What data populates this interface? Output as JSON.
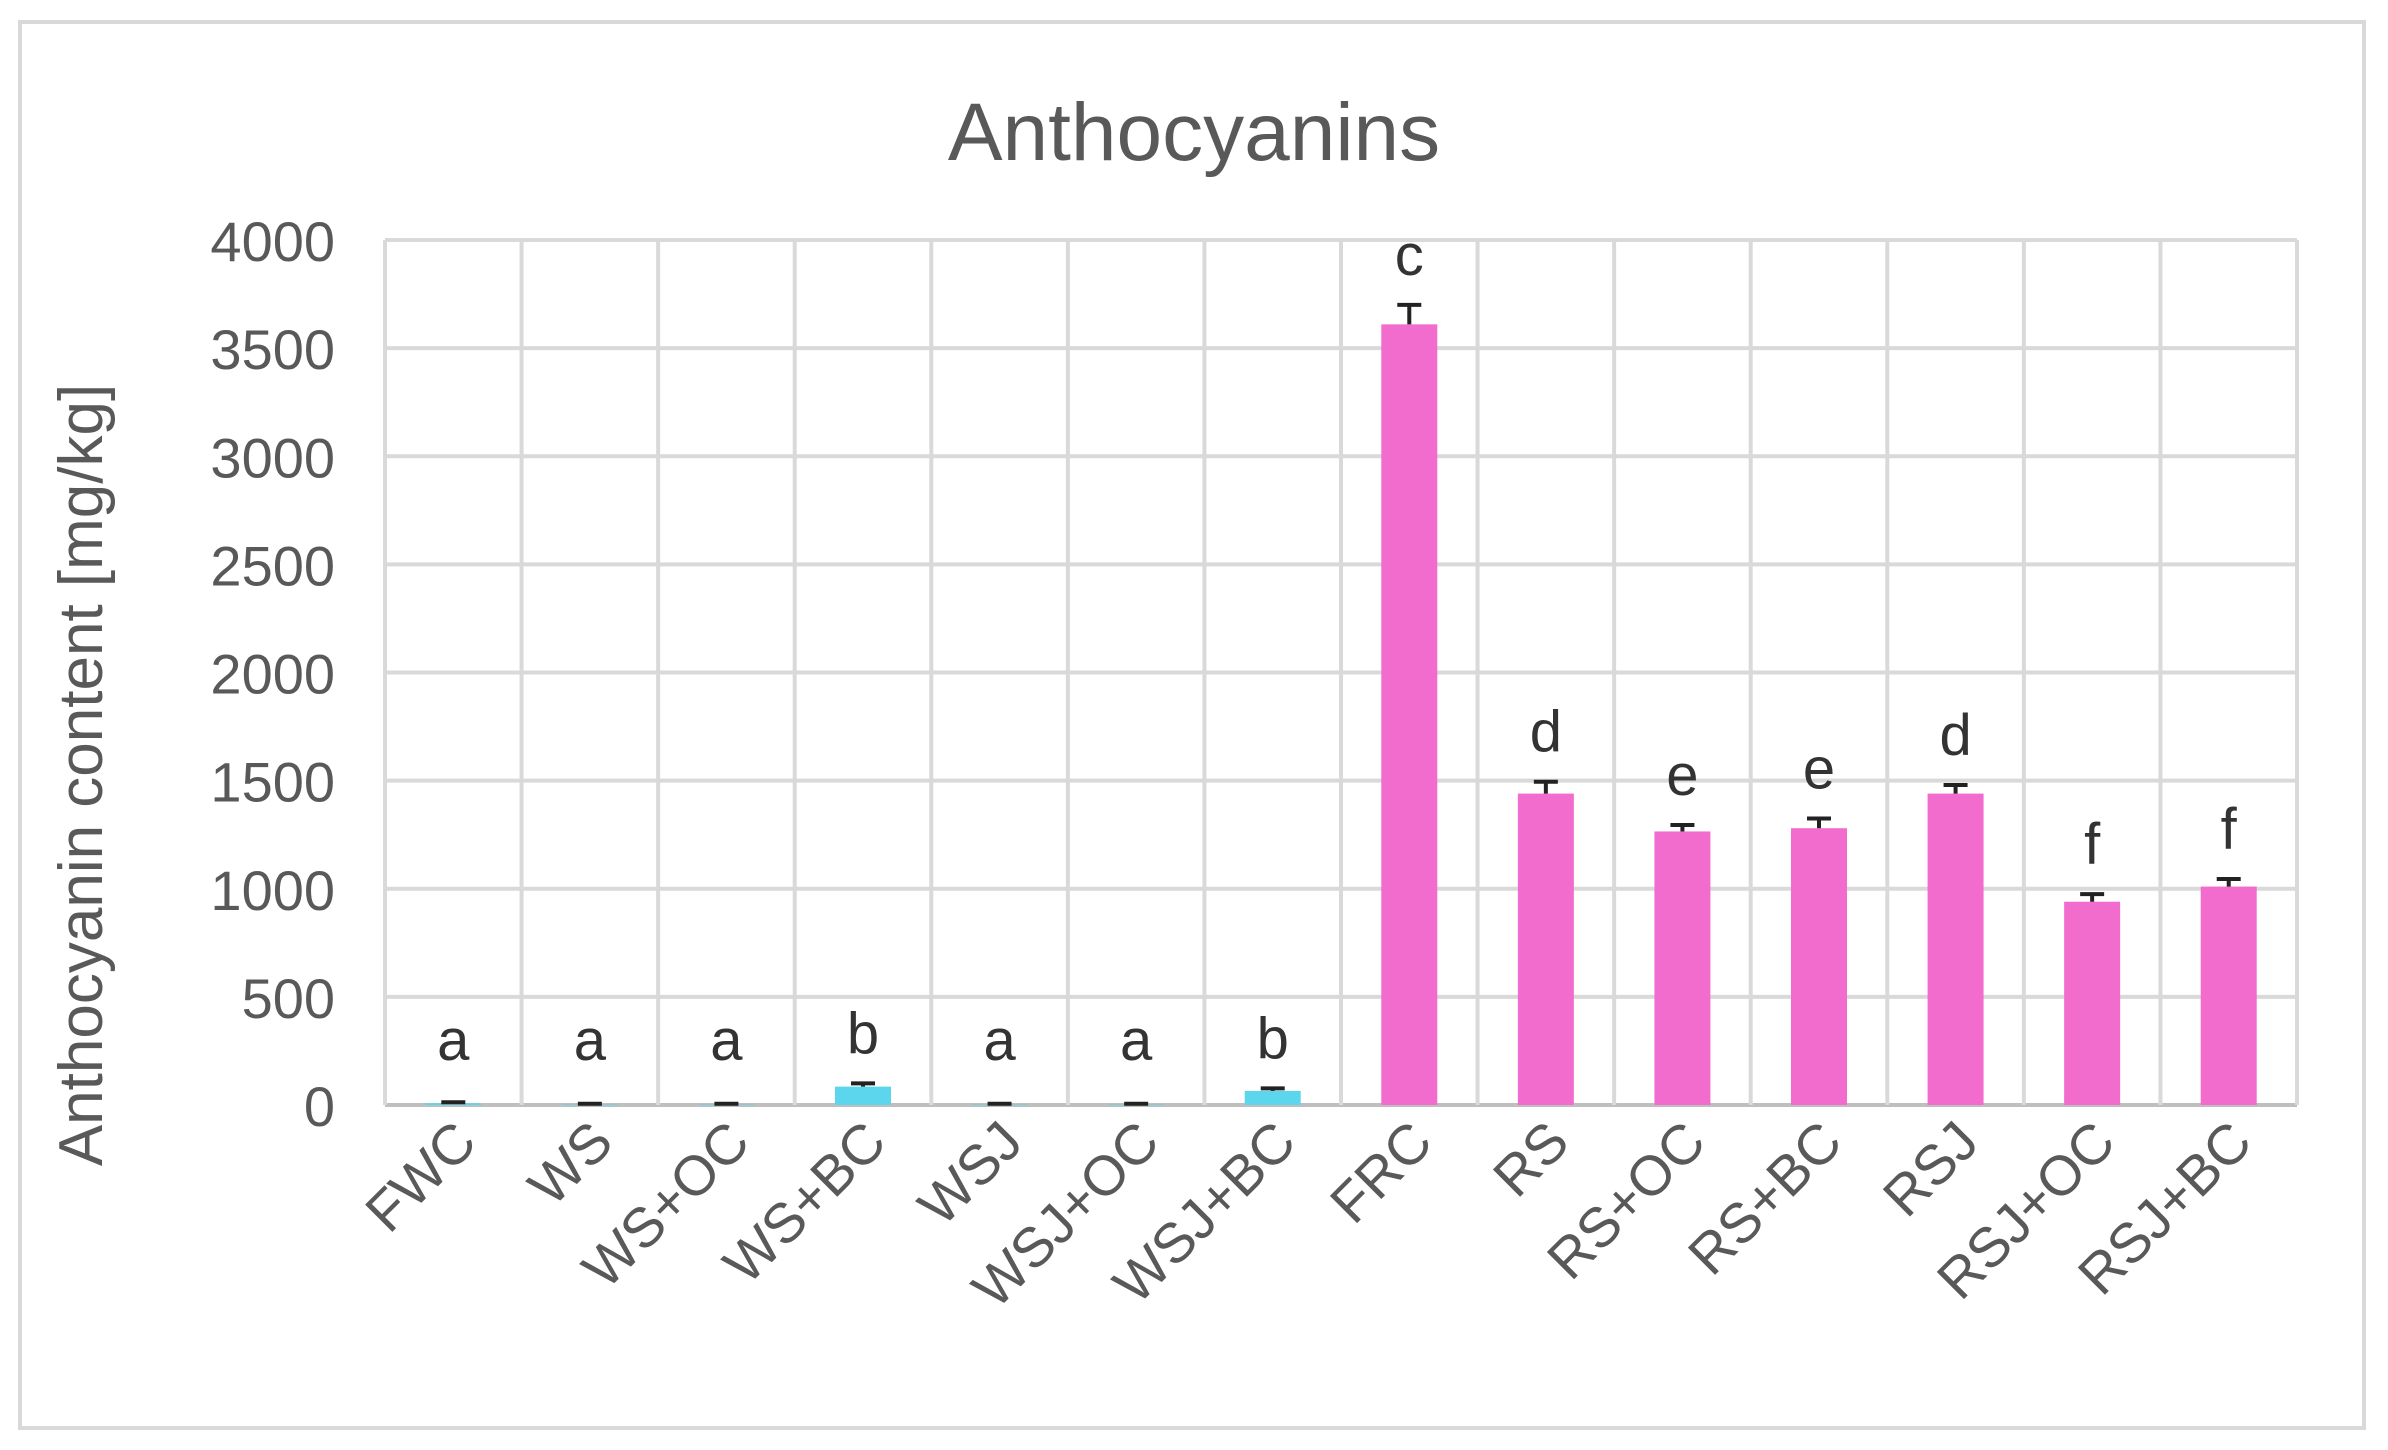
{
  "chart_data": {
    "type": "bar",
    "title": "Anthocyanins",
    "xlabel": "",
    "ylabel": "Anthocyanin content [mg/kg]",
    "ylim": [
      0,
      4000
    ],
    "yticks": [
      0,
      500,
      1000,
      1500,
      2000,
      2500,
      3000,
      3500,
      4000
    ],
    "grid": true,
    "categories": [
      "FWC",
      "WS",
      "WS+OC",
      "WS+BC",
      "WSJ",
      "WSJ+OC",
      "WSJ+BC",
      "FRC",
      "RS",
      "RS+OC",
      "RS+BC",
      "RSJ",
      "RSJ+OC",
      "RSJ+BC"
    ],
    "values": [
      8,
      3,
      3,
      85,
      3,
      3,
      65,
      3610,
      1440,
      1265,
      1280,
      1440,
      940,
      1010
    ],
    "errors": [
      5,
      3,
      3,
      15,
      3,
      3,
      12,
      90,
      55,
      30,
      45,
      40,
      35,
      35
    ],
    "significance_letters": [
      "a",
      "a",
      "a",
      "b",
      "a",
      "a",
      "b",
      "c",
      "d",
      "e",
      "e",
      "d",
      "f",
      "f"
    ],
    "bar_colors": [
      "#5bd6ec",
      "#5bd6ec",
      "#5bd6ec",
      "#5bd6ec",
      "#5bd6ec",
      "#5bd6ec",
      "#5bd6ec",
      "#f26ccd",
      "#f26ccd",
      "#f26ccd",
      "#f26ccd",
      "#f26ccd",
      "#f26ccd",
      "#f26ccd"
    ]
  }
}
